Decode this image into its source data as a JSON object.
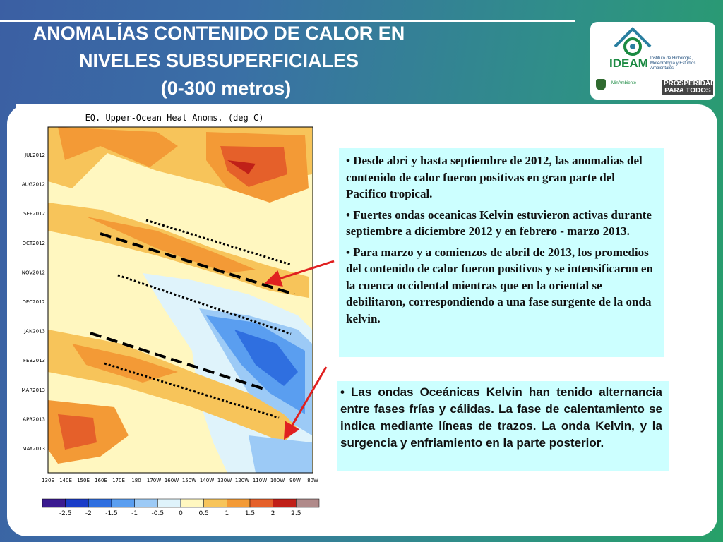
{
  "title": {
    "line1": "ANOMALÍAS CONTENIDO DE CALOR EN",
    "line2": "NIVELES SUBSUPERFICIALES",
    "line3": "(0-300 metros)"
  },
  "logo": {
    "name": "IDEAM",
    "subtitle": "Instituto de Hidrología, Meteorología y Estudios Ambientales",
    "ministry": "MinAmbiente",
    "slogan": "PROSPERIDAD PARA TODOS"
  },
  "colors": {
    "accent_blue": "#3b5fa3",
    "accent_green": "#27a068",
    "textbox_bg": "#ccffff",
    "arrow_red": "#e02020"
  },
  "chart_data": {
    "type": "heatmap",
    "title": "EQ. Upper-Ocean Heat Anoms. (deg C)",
    "x_tick_labels": [
      "130E",
      "140E",
      "150E",
      "160E",
      "170E",
      "180",
      "170W",
      "160W",
      "150W",
      "140W",
      "130W",
      "120W",
      "110W",
      "100W",
      "90W",
      "80W"
    ],
    "y_tick_labels": [
      "JUL2012",
      "AUG2012",
      "SEP2012",
      "OCT2012",
      "NOV2012",
      "DEC2012",
      "JAN2013",
      "FEB2013",
      "MAR2013",
      "APR2013",
      "MAY2013"
    ],
    "colorbar_ticks": [
      "-2.5",
      "-2",
      "-1.5",
      "-1",
      "-0.5",
      "0",
      "0.5",
      "1",
      "1.5",
      "2",
      "2.5"
    ],
    "colorbar_colors": [
      "#3a1a90",
      "#1a3cc8",
      "#2f6fe0",
      "#5a9ef0",
      "#9ccaf6",
      "#dff3fb",
      "#fff7c0",
      "#f7c45a",
      "#f39a36",
      "#e5602a",
      "#c02018",
      "#b08a8a"
    ],
    "annotations": [
      "dashed lines: warm phase of Kelvin waves",
      "dotted lines: wave boundaries"
    ]
  },
  "bullets_top": [
    "•  Desde abri y hasta septiembre de 2012, las anomalias del contenido de calor fueron positivas en gran parte del Pacifico tropical.",
    "• Fuertes ondas oceanicas Kelvin estuvieron activas durante septiembre  a diciembre 2012 y en febrero - marzo 2013.",
    "•  Para marzo y a comienzos de abril de 2013, los promedios del contenido de calor fueron positivos y se intensificaron en la cuenca occidental mientras que en la oriental se debilitaron, correspondiendo a una fase  surgente de la onda kelvin."
  ],
  "bullet_bottom": "• Las ondas Oceánicas Kelvin han tenido alternancia entre fases frías y cálidas. La fase de calentamiento se indica mediante líneas de trazos. La onda Kelvin, y la surgencia y enfriamiento en la parte posterior."
}
